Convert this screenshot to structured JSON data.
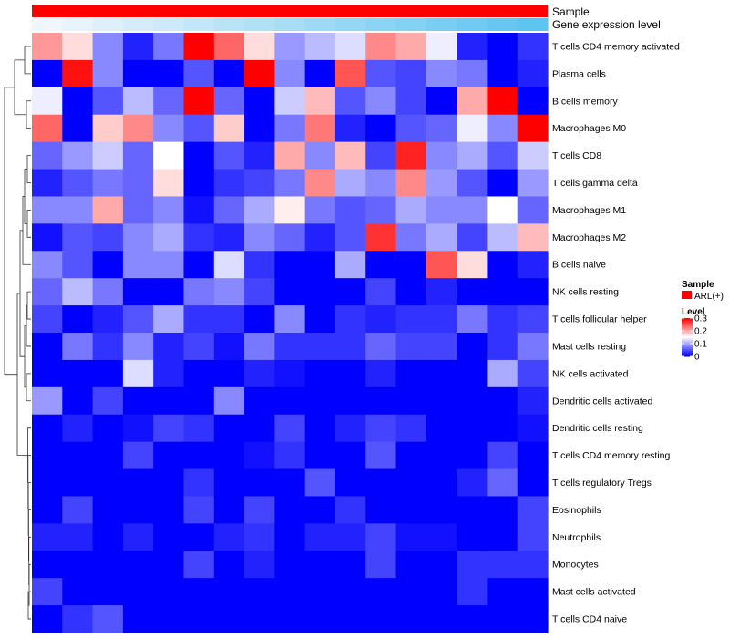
{
  "chart_data": {
    "type": "heatmap",
    "title": "",
    "rows": [
      "T cells CD4 memory activated",
      "Plasma cells",
      "B cells memory",
      "Macrophages M0",
      "T cells CD8",
      "T cells gamma delta",
      "Macrophages M1",
      "Macrophages M2",
      "B cells naive",
      "NK cells resting",
      "T cells follicular helper",
      "Mast cells resting",
      "NK cells activated",
      "Dendritic cells activated",
      "Dendritic cells resting",
      "T cells CD4 memory resting",
      "T cells regulatory  Tregs",
      "Eosinophils",
      "Neutrophils",
      "Monocytes",
      "Mast cells activated",
      "T cells CD4 naive"
    ],
    "n_columns": 17,
    "values": [
      [
        0.21,
        0.17,
        0.08,
        0.02,
        0.07,
        0.3,
        0.24,
        0.17,
        0.09,
        0.11,
        0.13,
        0.22,
        0.2,
        0.14,
        0.02,
        0.0,
        0.03
      ],
      [
        0.0,
        0.29,
        0.08,
        0.0,
        0.0,
        0.05,
        0.0,
        0.3,
        0.08,
        0.0,
        0.25,
        0.05,
        0.04,
        0.08,
        0.07,
        0.0,
        0.02
      ],
      [
        0.14,
        0.0,
        0.05,
        0.11,
        0.06,
        0.3,
        0.06,
        0.0,
        0.12,
        0.19,
        0.05,
        0.08,
        0.04,
        0.0,
        0.2,
        0.3,
        0.0
      ],
      [
        0.24,
        0.0,
        0.18,
        0.22,
        0.08,
        0.05,
        0.18,
        0.0,
        0.07,
        0.23,
        0.02,
        0.0,
        0.05,
        0.06,
        0.14,
        0.08,
        0.3
      ],
      [
        0.06,
        0.09,
        0.12,
        0.06,
        0.15,
        0.0,
        0.05,
        0.02,
        0.2,
        0.08,
        0.19,
        0.04,
        0.28,
        0.08,
        0.1,
        0.05,
        0.12
      ],
      [
        0.02,
        0.05,
        0.07,
        0.06,
        0.17,
        0.0,
        0.03,
        0.04,
        0.07,
        0.22,
        0.1,
        0.08,
        0.22,
        0.09,
        0.05,
        0.0,
        0.09
      ],
      [
        0.08,
        0.08,
        0.2,
        0.06,
        0.08,
        0.01,
        0.06,
        0.1,
        0.16,
        0.07,
        0.05,
        0.06,
        0.1,
        0.08,
        0.08,
        0.15,
        0.06
      ],
      [
        0.01,
        0.05,
        0.04,
        0.08,
        0.1,
        0.03,
        0.02,
        0.08,
        0.06,
        0.02,
        0.05,
        0.27,
        0.07,
        0.1,
        0.04,
        0.11,
        0.19
      ],
      [
        0.08,
        0.05,
        0.0,
        0.08,
        0.08,
        0.0,
        0.13,
        0.03,
        0.0,
        0.0,
        0.1,
        0.0,
        0.0,
        0.25,
        0.17,
        0.0,
        0.02
      ],
      [
        0.06,
        0.11,
        0.07,
        0.0,
        0.0,
        0.07,
        0.08,
        0.04,
        0.0,
        0.0,
        0.0,
        0.04,
        0.0,
        0.02,
        0.0,
        0.0,
        0.0
      ],
      [
        0.04,
        0.0,
        0.02,
        0.05,
        0.1,
        0.03,
        0.03,
        0.0,
        0.08,
        0.0,
        0.03,
        0.02,
        0.03,
        0.03,
        0.07,
        0.03,
        0.04
      ],
      [
        0.0,
        0.07,
        0.03,
        0.08,
        0.02,
        0.04,
        0.01,
        0.07,
        0.03,
        0.03,
        0.03,
        0.06,
        0.04,
        0.04,
        0.0,
        0.03,
        0.07
      ],
      [
        0.0,
        0.0,
        0.0,
        0.13,
        0.02,
        0.0,
        0.0,
        0.02,
        0.01,
        0.0,
        0.0,
        0.02,
        0.0,
        0.0,
        0.0,
        0.1,
        0.04
      ],
      [
        0.09,
        0.0,
        0.04,
        0.0,
        0.0,
        0.0,
        0.08,
        0.0,
        0.0,
        0.0,
        0.0,
        0.0,
        0.0,
        0.0,
        0.0,
        0.0,
        0.02
      ],
      [
        0.0,
        0.02,
        0.0,
        0.01,
        0.04,
        0.03,
        0.0,
        0.0,
        0.04,
        0.0,
        0.02,
        0.04,
        0.03,
        0.0,
        0.0,
        0.0,
        0.01
      ],
      [
        0.0,
        0.0,
        0.0,
        0.04,
        0.0,
        0.0,
        0.0,
        0.01,
        0.03,
        0.0,
        0.0,
        0.05,
        0.0,
        0.0,
        0.0,
        0.04,
        0.0
      ],
      [
        0.0,
        0.0,
        0.0,
        0.0,
        0.0,
        0.03,
        0.0,
        0.0,
        0.0,
        0.05,
        0.0,
        0.0,
        0.0,
        0.0,
        0.02,
        0.06,
        0.0
      ],
      [
        0.0,
        0.04,
        0.0,
        0.0,
        0.0,
        0.04,
        0.0,
        0.04,
        0.0,
        0.0,
        0.03,
        0.0,
        0.0,
        0.0,
        0.0,
        0.0,
        0.04
      ],
      [
        0.02,
        0.02,
        0.0,
        0.02,
        0.0,
        0.0,
        0.02,
        0.03,
        0.0,
        0.02,
        0.02,
        0.04,
        0.01,
        0.01,
        0.0,
        0.0,
        0.04
      ],
      [
        0.0,
        0.0,
        0.0,
        0.0,
        0.0,
        0.04,
        0.0,
        0.02,
        0.0,
        0.0,
        0.0,
        0.04,
        0.0,
        0.0,
        0.03,
        0.03,
        0.03
      ],
      [
        0.04,
        0.0,
        0.0,
        0.0,
        0.0,
        0.0,
        0.0,
        0.0,
        0.0,
        0.0,
        0.0,
        0.0,
        0.0,
        0.0,
        0.03,
        0.0,
        0.0
      ],
      [
        0.0,
        0.03,
        0.05,
        0.0,
        0.0,
        0.0,
        0.0,
        0.0,
        0.0,
        0.0,
        0.0,
        0.0,
        0.0,
        0.0,
        0.0,
        0.0,
        0.0
      ]
    ],
    "annotations": [
      {
        "name": "Sample",
        "type": "categorical",
        "values": [
          "ARL(+)"
        ]
      },
      {
        "name": "Gene expression level",
        "type": "continuous",
        "direction": "increasing left to right"
      }
    ],
    "color_scale": {
      "title": "Level",
      "min": 0,
      "max": 0.3,
      "ticks": [
        "0",
        "0.1",
        "0.2",
        "0.3"
      ],
      "low_color": "#0000ff",
      "mid_color": "#ffffff",
      "high_color": "#ff0000"
    },
    "dendrogram": "rows",
    "legend_position": "right"
  },
  "colors": {
    "sample_bar": "#ff0000",
    "gene_low": "#f0f7fc",
    "gene_high": "#5ec4f0"
  },
  "legend": {
    "sample_title": "Sample",
    "sample_entry": "ARL(+)",
    "level_title": "Level"
  },
  "labels": {
    "sample_annotation": "Sample",
    "gene_annotation": "Gene expression level"
  }
}
